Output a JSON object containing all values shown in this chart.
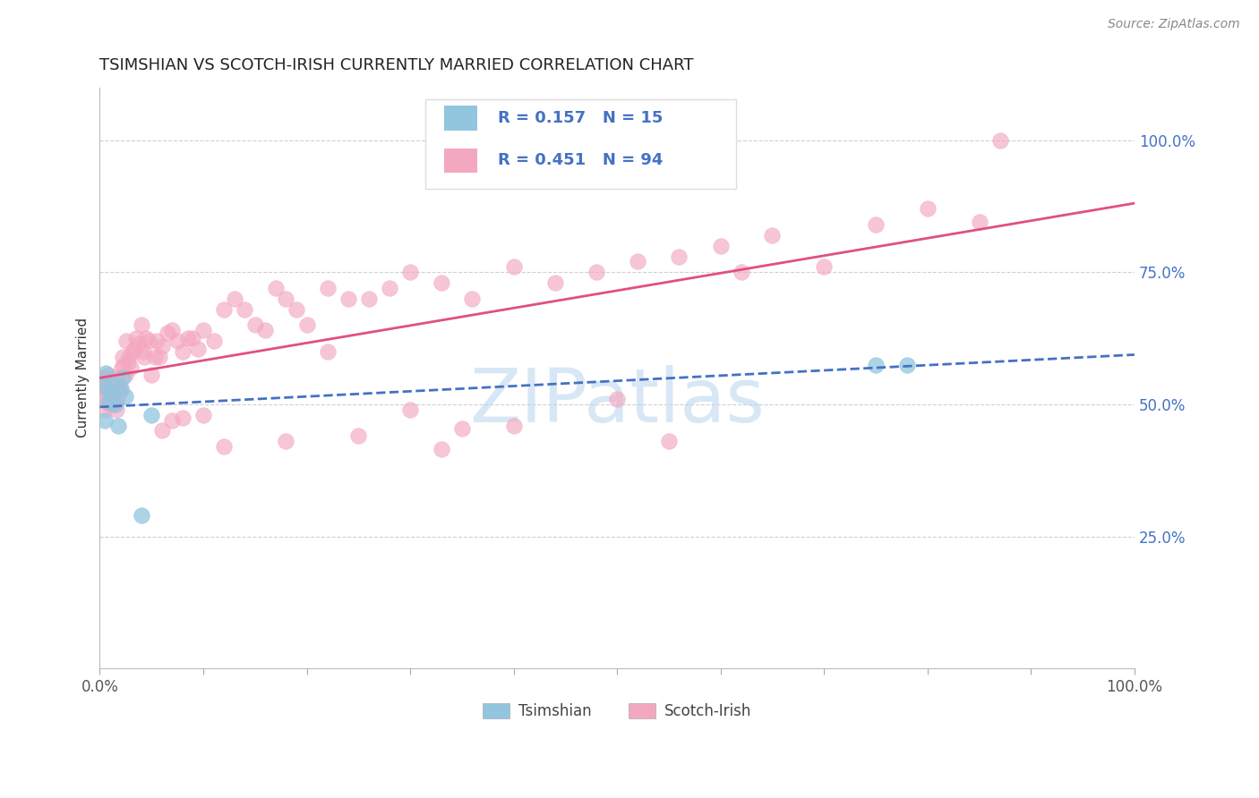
{
  "title": "TSIMSHIAN VS SCOTCH-IRISH CURRENTLY MARRIED CORRELATION CHART",
  "source_text": "Source: ZipAtlas.com",
  "ylabel": "Currently Married",
  "watermark": "ZIPatlas",
  "tsimshian_R": 0.157,
  "tsimshian_N": 15,
  "scotch_irish_R": 0.451,
  "scotch_irish_N": 94,
  "tsimshian_color": "#92c5de",
  "scotch_irish_color": "#f4a8c0",
  "tsimshian_line_color": "#4472c4",
  "scotch_irish_line_color": "#e05080",
  "right_tick_color": "#4472c4",
  "grid_color": "#d0d0d0",
  "ylim_low": 0.0,
  "ylim_high": 1.1,
  "xlim_low": 0.0,
  "xlim_high": 1.0,
  "tsimshian_x": [
    0.003,
    0.005,
    0.006,
    0.008,
    0.01,
    0.012,
    0.015,
    0.018,
    0.02,
    0.022,
    0.025,
    0.05,
    0.75,
    0.78,
    0.04
  ],
  "tsimshian_y": [
    0.535,
    0.47,
    0.56,
    0.505,
    0.52,
    0.535,
    0.5,
    0.46,
    0.53,
    0.55,
    0.515,
    0.48,
    0.575,
    0.575,
    0.29
  ],
  "scotch_irish_x": [
    0.003,
    0.004,
    0.005,
    0.005,
    0.006,
    0.007,
    0.008,
    0.009,
    0.01,
    0.01,
    0.011,
    0.012,
    0.013,
    0.015,
    0.015,
    0.016,
    0.017,
    0.018,
    0.019,
    0.02,
    0.021,
    0.022,
    0.023,
    0.025,
    0.026,
    0.027,
    0.028,
    0.03,
    0.032,
    0.033,
    0.035,
    0.038,
    0.04,
    0.042,
    0.043,
    0.045,
    0.047,
    0.05,
    0.053,
    0.055,
    0.058,
    0.06,
    0.065,
    0.07,
    0.075,
    0.08,
    0.085,
    0.09,
    0.095,
    0.1,
    0.11,
    0.12,
    0.13,
    0.14,
    0.15,
    0.16,
    0.17,
    0.18,
    0.19,
    0.2,
    0.22,
    0.24,
    0.26,
    0.28,
    0.3,
    0.33,
    0.36,
    0.4,
    0.44,
    0.48,
    0.52,
    0.56,
    0.6,
    0.62,
    0.65,
    0.7,
    0.75,
    0.8,
    0.85,
    0.87,
    0.3,
    0.18,
    0.22,
    0.12,
    0.25,
    0.33,
    0.1,
    0.08,
    0.07,
    0.06,
    0.5,
    0.55,
    0.4,
    0.35
  ],
  "scotch_irish_y": [
    0.53,
    0.51,
    0.55,
    0.49,
    0.545,
    0.52,
    0.555,
    0.5,
    0.54,
    0.5,
    0.51,
    0.52,
    0.5,
    0.535,
    0.55,
    0.49,
    0.51,
    0.535,
    0.53,
    0.525,
    0.57,
    0.59,
    0.575,
    0.555,
    0.62,
    0.58,
    0.59,
    0.57,
    0.6,
    0.605,
    0.625,
    0.615,
    0.65,
    0.6,
    0.59,
    0.625,
    0.62,
    0.555,
    0.59,
    0.62,
    0.59,
    0.61,
    0.635,
    0.64,
    0.62,
    0.6,
    0.625,
    0.625,
    0.605,
    0.64,
    0.62,
    0.68,
    0.7,
    0.68,
    0.65,
    0.64,
    0.72,
    0.7,
    0.68,
    0.65,
    0.72,
    0.7,
    0.7,
    0.72,
    0.75,
    0.73,
    0.7,
    0.76,
    0.73,
    0.75,
    0.77,
    0.78,
    0.8,
    0.75,
    0.82,
    0.76,
    0.84,
    0.87,
    0.845,
    1.0,
    0.49,
    0.43,
    0.6,
    0.42,
    0.44,
    0.415,
    0.48,
    0.475,
    0.47,
    0.45,
    0.51,
    0.43,
    0.46,
    0.455
  ]
}
